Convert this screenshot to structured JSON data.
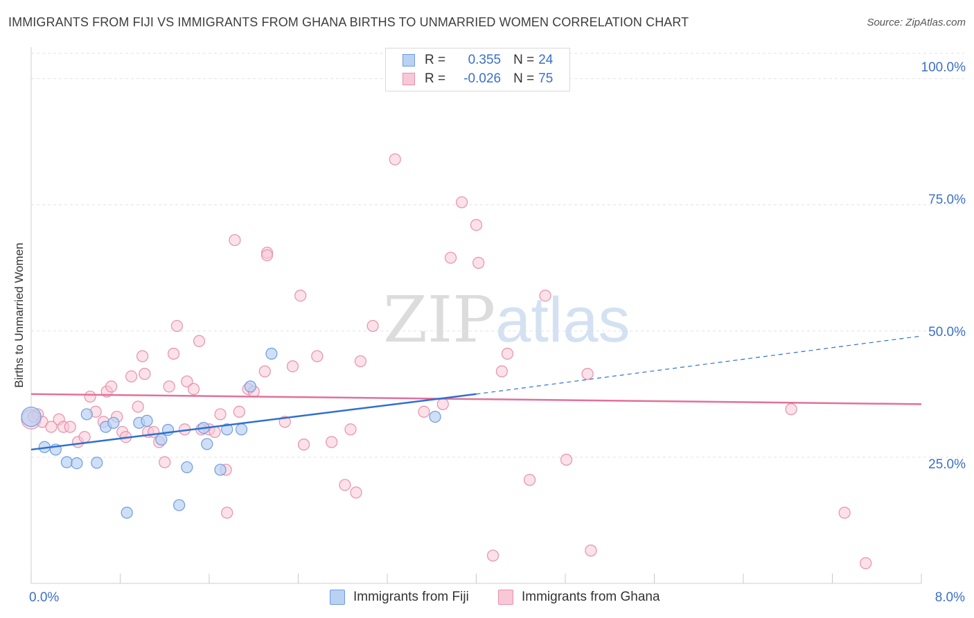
{
  "header": {
    "title": "IMMIGRANTS FROM FIJI VS IMMIGRANTS FROM GHANA BIRTHS TO UNMARRIED WOMEN CORRELATION CHART",
    "source": "Source: ZipAtlas.com"
  },
  "legend": {
    "fiji": {
      "r_label": "R =",
      "r_value": "0.355",
      "n_label": "N =",
      "n_value": "24"
    },
    "ghana": {
      "r_label": "R =",
      "r_value": "-0.026",
      "n_label": "N =",
      "n_value": "75"
    }
  },
  "watermark": {
    "zip": "ZIP",
    "atlas": "atlas"
  },
  "colors": {
    "fiji_fill": "#b9d1f3",
    "fiji_stroke": "#6e9be0",
    "fiji_line": "#2e6fd1",
    "ghana_fill": "#f8c8d6",
    "ghana_stroke": "#e890ab",
    "ghana_line": "#e2709a",
    "tick_text": "#3b6fc9",
    "grid": "#e2e2e2"
  },
  "chart_data": {
    "type": "scatter",
    "title": "IMMIGRANTS FROM FIJI VS IMMIGRANTS FROM GHANA BIRTHS TO UNMARRIED WOMEN CORRELATION CHART",
    "xlabel": "",
    "ylabel": "Births to Unmarried Women",
    "xlim": [
      0,
      8
    ],
    "ylim": [
      0,
      105
    ],
    "x_tick_labels": [
      "0.0%",
      "8.0%"
    ],
    "y_tick_labels": [
      "25.0%",
      "50.0%",
      "75.0%",
      "100.0%"
    ],
    "y_ticks": [
      25,
      50,
      75,
      100
    ],
    "grid": true,
    "legend_position": "top-center",
    "series": [
      {
        "name": "Immigrants from Fiji",
        "color": "#b9d1f3",
        "points": [
          [
            0.0,
            33.0
          ],
          [
            0.12,
            27.0
          ],
          [
            0.22,
            26.5
          ],
          [
            0.32,
            24.0
          ],
          [
            0.41,
            23.8
          ],
          [
            0.5,
            33.5
          ],
          [
            0.59,
            23.9
          ],
          [
            0.67,
            31.0
          ],
          [
            0.74,
            31.8
          ],
          [
            0.86,
            14.0
          ],
          [
            0.97,
            31.8
          ],
          [
            1.04,
            32.2
          ],
          [
            1.17,
            28.5
          ],
          [
            1.23,
            30.4
          ],
          [
            1.33,
            15.5
          ],
          [
            1.4,
            23.0
          ],
          [
            1.55,
            30.8
          ],
          [
            1.58,
            27.6
          ],
          [
            1.7,
            22.5
          ],
          [
            1.76,
            30.5
          ],
          [
            1.89,
            30.5
          ],
          [
            1.97,
            39.0
          ],
          [
            2.16,
            45.5
          ],
          [
            3.63,
            33.0
          ]
        ],
        "trend": {
          "x": [
            0,
            4.0
          ],
          "y": [
            26.5,
            37.5
          ],
          "dashed_extension": {
            "x": [
              4.0,
              8.0
            ],
            "y": [
              37.5,
              49.0
            ]
          }
        }
      },
      {
        "name": "Immigrants from Ghana",
        "color": "#f8c8d6",
        "points": [
          [
            0.0,
            32.5
          ],
          [
            0.06,
            33.5
          ],
          [
            0.1,
            32.0
          ],
          [
            0.18,
            31.0
          ],
          [
            0.25,
            32.5
          ],
          [
            0.29,
            31.0
          ],
          [
            0.35,
            31.0
          ],
          [
            0.42,
            28.0
          ],
          [
            0.48,
            29.0
          ],
          [
            0.53,
            37.0
          ],
          [
            0.58,
            34.0
          ],
          [
            0.65,
            32.0
          ],
          [
            0.68,
            38.0
          ],
          [
            0.72,
            39.0
          ],
          [
            0.77,
            33.0
          ],
          [
            0.82,
            30.0
          ],
          [
            0.85,
            29.0
          ],
          [
            0.9,
            41.0
          ],
          [
            0.96,
            35.0
          ],
          [
            1.0,
            45.0
          ],
          [
            1.02,
            41.5
          ],
          [
            1.05,
            30.0
          ],
          [
            1.1,
            30.0
          ],
          [
            1.15,
            28.0
          ],
          [
            1.2,
            24.0
          ],
          [
            1.24,
            39.0
          ],
          [
            1.28,
            45.5
          ],
          [
            1.31,
            51.0
          ],
          [
            1.38,
            30.5
          ],
          [
            1.4,
            40.0
          ],
          [
            1.46,
            38.5
          ],
          [
            1.51,
            48.0
          ],
          [
            1.53,
            30.5
          ],
          [
            1.6,
            30.5
          ],
          [
            1.65,
            30.0
          ],
          [
            1.7,
            33.5
          ],
          [
            1.75,
            22.5
          ],
          [
            1.76,
            14.0
          ],
          [
            1.83,
            68.0
          ],
          [
            1.87,
            34.0
          ],
          [
            1.95,
            38.5
          ],
          [
            2.0,
            38.0
          ],
          [
            2.1,
            42.0
          ],
          [
            2.12,
            65.5
          ],
          [
            2.12,
            65.0
          ],
          [
            2.28,
            32.0
          ],
          [
            2.35,
            43.0
          ],
          [
            2.42,
            57.0
          ],
          [
            2.45,
            27.5
          ],
          [
            2.57,
            45.0
          ],
          [
            2.7,
            28.0
          ],
          [
            2.82,
            19.5
          ],
          [
            2.87,
            30.5
          ],
          [
            2.92,
            18.0
          ],
          [
            2.96,
            44.0
          ],
          [
            3.07,
            51.0
          ],
          [
            3.27,
            84.0
          ],
          [
            3.53,
            34.0
          ],
          [
            3.7,
            35.5
          ],
          [
            3.77,
            64.5
          ],
          [
            3.87,
            75.5
          ],
          [
            4.0,
            71.0
          ],
          [
            4.02,
            63.5
          ],
          [
            4.15,
            5.5
          ],
          [
            4.23,
            42.0
          ],
          [
            4.28,
            45.5
          ],
          [
            4.48,
            20.5
          ],
          [
            4.62,
            57.0
          ],
          [
            4.81,
            24.5
          ],
          [
            5.0,
            41.5
          ],
          [
            5.03,
            6.5
          ],
          [
            6.83,
            34.5
          ],
          [
            7.31,
            14.0
          ],
          [
            7.5,
            4.0
          ],
          [
            0.02,
            33.0
          ]
        ],
        "trend": {
          "x": [
            0,
            8.0
          ],
          "y": [
            37.5,
            35.5
          ]
        }
      }
    ]
  },
  "bottom_legend": {
    "fiji": "Immigrants from Fiji",
    "ghana": "Immigrants from Ghana"
  }
}
